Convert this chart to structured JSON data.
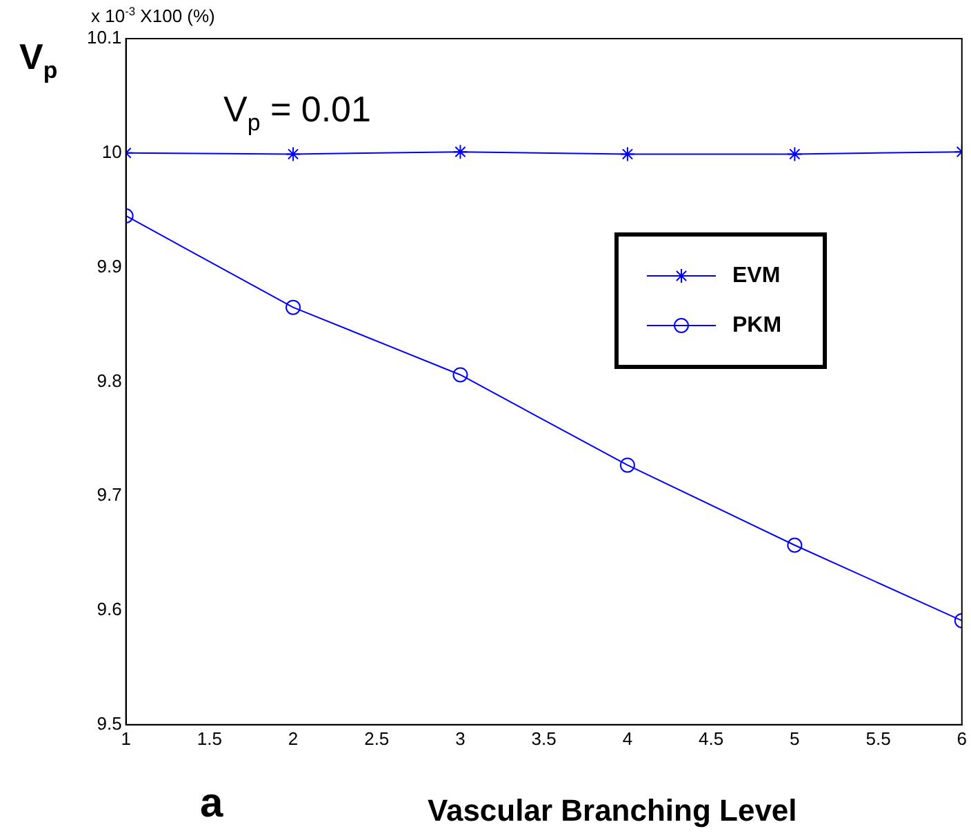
{
  "chart_data": {
    "type": "line",
    "xlabel": "Vascular Branching Level",
    "ylabel": "V$_{p}$",
    "annotations": [
      "x 10$^{-3}$ X100 (%)",
      "V$_{p}$ = 0.01",
      "a"
    ],
    "x": [
      1,
      2,
      3,
      4,
      5,
      6
    ],
    "series": [
      {
        "name": "EVM",
        "color": "#0000ff",
        "marker": "cross",
        "values": [
          10.0,
          9.999,
          10.001,
          9.999,
          9.999,
          10.001
        ]
      },
      {
        "name": "PKM",
        "color": "#0000ff",
        "marker": "circle",
        "values": [
          9.945,
          9.865,
          9.806,
          9.727,
          9.657,
          9.591
        ]
      }
    ],
    "xlim": [
      1,
      6
    ],
    "xticks": [
      1,
      1.5,
      2,
      2.5,
      3,
      3.5,
      4,
      4.5,
      5,
      5.5,
      6
    ],
    "ylim": [
      9.5,
      10.1
    ],
    "yticks": [
      9.5,
      9.6,
      9.7,
      9.8,
      9.9,
      10,
      10.1
    ],
    "grid": false,
    "legend": "right",
    "line_style": "solid"
  }
}
